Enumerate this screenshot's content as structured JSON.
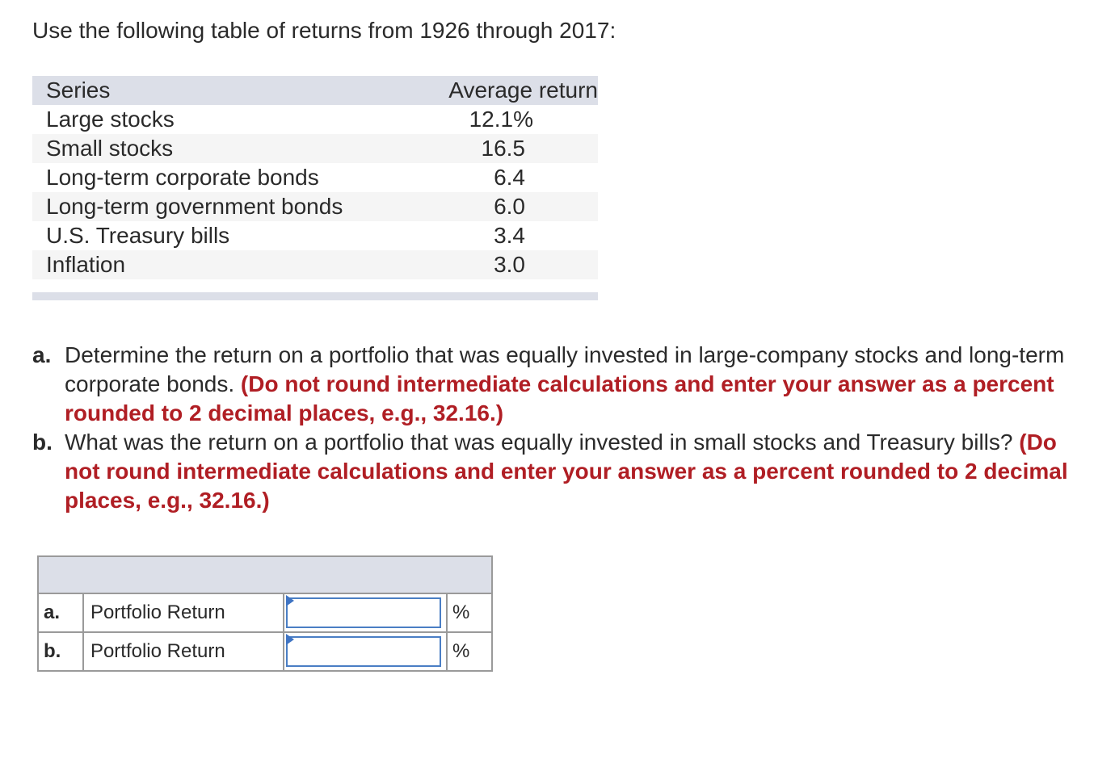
{
  "intro": "Use the following table of returns from 1926 through 2017:",
  "returns_table": {
    "headers": [
      "Series",
      "Average return"
    ],
    "rows": [
      {
        "series": "Large stocks",
        "value": "12.1%"
      },
      {
        "series": "Small stocks",
        "value": "16.5"
      },
      {
        "series": "Long-term corporate bonds",
        "value": "6.4"
      },
      {
        "series": "Long-term government bonds",
        "value": "6.0"
      },
      {
        "series": "U.S. Treasury bills",
        "value": "3.4"
      },
      {
        "series": "Inflation",
        "value": "3.0"
      }
    ]
  },
  "questions": [
    {
      "letter": "a.",
      "text": "Determine the return on a portfolio that was equally invested in large-company stocks and long-term corporate bonds.",
      "hint": "(Do not round intermediate calculations and enter your answer as a percent rounded to 2 decimal places, e.g., 32.16.)"
    },
    {
      "letter": "b.",
      "text": "What was the return on a portfolio that was equally invested in small stocks and Treasury bills?",
      "hint": "(Do not round intermediate calculations and enter your answer as a percent rounded to 2 decimal places, e.g., 32.16.)"
    }
  ],
  "answers": [
    {
      "letter": "a.",
      "label": "Portfolio Return",
      "value": "",
      "unit": "%"
    },
    {
      "letter": "b.",
      "label": "Portfolio Return",
      "value": "",
      "unit": "%"
    }
  ],
  "colors": {
    "hint": "#b01e24",
    "header_bg": "#dcdfe8",
    "input_border": "#4a7ec4"
  }
}
